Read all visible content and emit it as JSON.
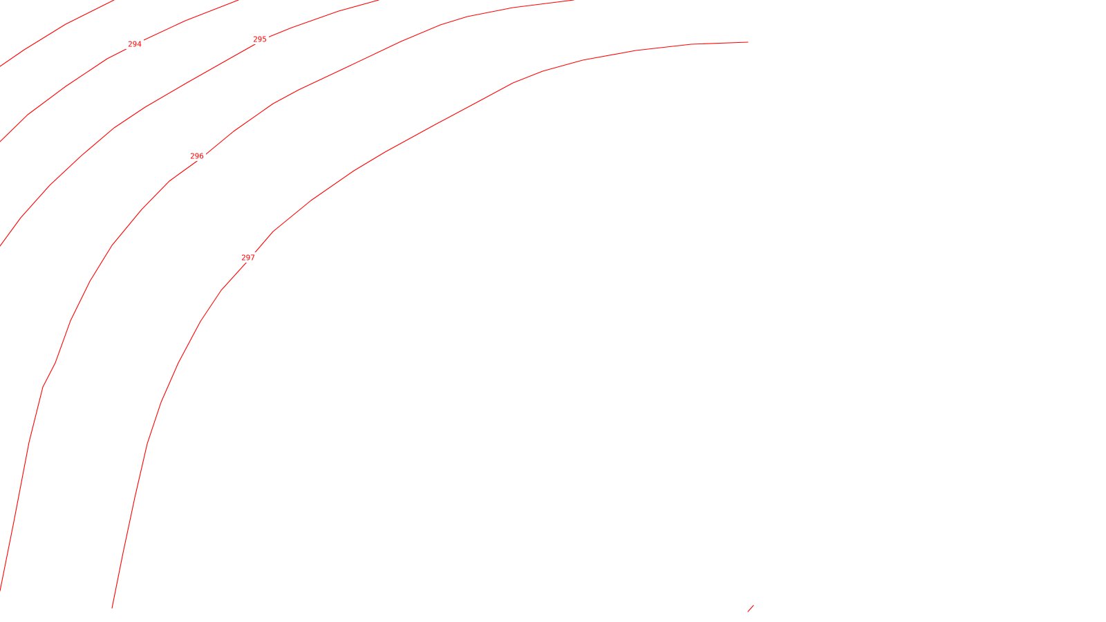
{
  "map": {
    "background_color": "#ffffff",
    "contour_color": "#ff0000",
    "contours": [
      {
        "id": "contour-293",
        "elevation": null
      },
      {
        "id": "contour-294",
        "elevation": "294"
      },
      {
        "id": "contour-295",
        "elevation": "295"
      },
      {
        "id": "contour-296",
        "elevation": "296"
      },
      {
        "id": "contour-297",
        "elevation": "297"
      },
      {
        "id": "contour-fragment",
        "elevation": null
      }
    ]
  }
}
